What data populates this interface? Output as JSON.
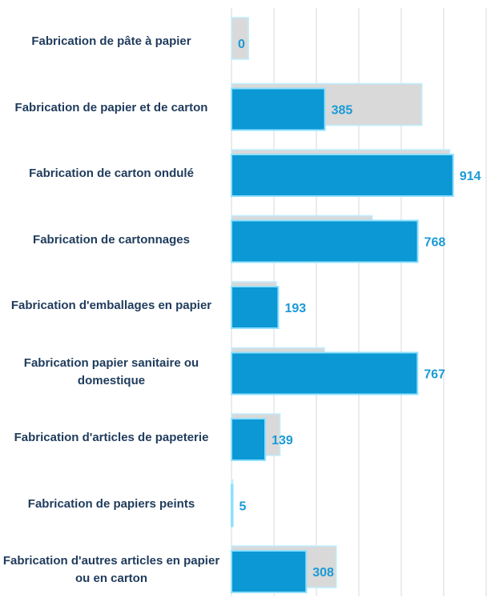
{
  "chart_data": {
    "type": "bar",
    "orientation": "horizontal",
    "categories": [
      "Fabrication de pâte à papier",
      "Fabrication de papier et de carton",
      "Fabrication de carton ondulé",
      "Fabrication de cartonnages",
      "Fabrication d'emballages en papier",
      "Fabrication papier sanitaire ou domestique",
      "Fabrication d'articles de papeterie",
      "Fabrication de papiers peints",
      "Fabrication d'autres articles en papier ou en carton"
    ],
    "series": [
      {
        "color": "#d9d9d9",
        "values": [
          70,
          785,
          900,
          580,
          185,
          383,
          200,
          5,
          432
        ]
      },
      {
        "color": "#0b98d4",
        "values": [
          0,
          385,
          914,
          768,
          193,
          767,
          139,
          5,
          308
        ]
      }
    ],
    "xlim": [
      0,
      1070
    ],
    "xticks": [
      0,
      175,
      350,
      525,
      700,
      875,
      1050
    ],
    "grid": true
  }
}
